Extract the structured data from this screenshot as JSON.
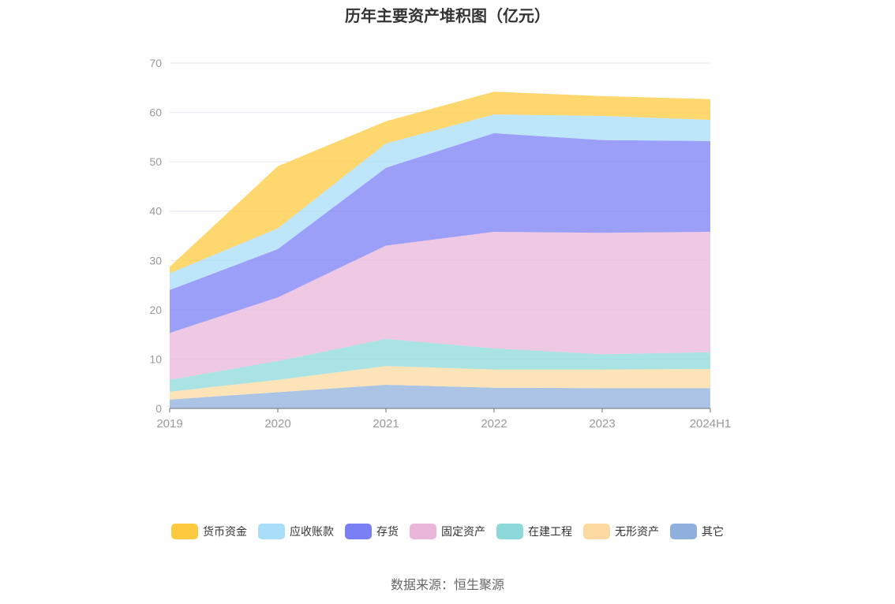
{
  "source": "数据来源：恒生聚源",
  "chart_data": {
    "type": "area",
    "stacked": true,
    "title": "历年主要资产堆积图（亿元）",
    "categories": [
      "2019",
      "2020",
      "2021",
      "2022",
      "2023",
      "2024H1"
    ],
    "ylim": [
      0,
      70
    ],
    "yticks": [
      0,
      10,
      20,
      30,
      40,
      50,
      60,
      70
    ],
    "grid": true,
    "legend_position": "bottom",
    "series": [
      {
        "name": "其它",
        "color": "#8fb0dd",
        "values": [
          1.8,
          3.3,
          4.8,
          4.2,
          4.1,
          4.1
        ]
      },
      {
        "name": "无形资产",
        "color": "#fcd9a0",
        "values": [
          1.6,
          2.5,
          3.8,
          3.7,
          3.8,
          3.9
        ]
      },
      {
        "name": "在建工程",
        "color": "#8dd9d9",
        "values": [
          2.4,
          3.8,
          5.5,
          4.3,
          3.1,
          3.4
        ]
      },
      {
        "name": "固定资产",
        "color": "#eab7da",
        "values": [
          9.5,
          12.9,
          18.9,
          23.6,
          24.6,
          24.4
        ]
      },
      {
        "name": "存货",
        "color": "#7b7ff5",
        "values": [
          8.7,
          9.8,
          15.8,
          20.0,
          18.8,
          18.4
        ]
      },
      {
        "name": "应收账款",
        "color": "#a8def8",
        "values": [
          3.4,
          4.2,
          4.9,
          3.8,
          4.9,
          4.3
        ]
      },
      {
        "name": "货币资金",
        "color": "#fdc93e",
        "values": [
          1.3,
          12.6,
          4.5,
          4.6,
          4.0,
          4.2
        ]
      }
    ]
  }
}
